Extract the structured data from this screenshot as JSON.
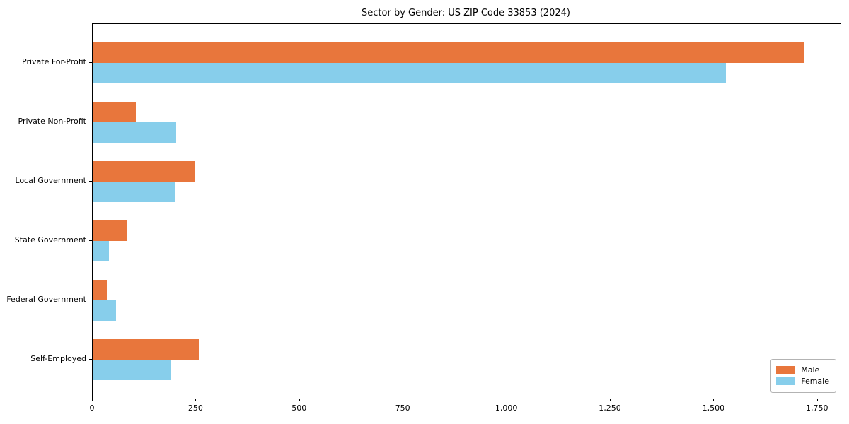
{
  "chart_data": {
    "type": "bar",
    "orientation": "horizontal",
    "title": "Sector by Gender: US ZIP Code 33853 (2024)",
    "categories": [
      "Private For-Profit",
      "Private Non-Profit",
      "Local Government",
      "State Government",
      "Federal Government",
      "Self-Employed"
    ],
    "series": [
      {
        "name": "Male",
        "color": "#e8763c",
        "values": [
          1718,
          104,
          248,
          83,
          35,
          256
        ]
      },
      {
        "name": "Female",
        "color": "#87ceeb",
        "values": [
          1528,
          202,
          198,
          39,
          56,
          187
        ]
      }
    ],
    "xlabel": "",
    "ylabel": "",
    "xlim": [
      0,
      1805
    ],
    "x_ticks": [
      0,
      250,
      500,
      750,
      1000,
      1250,
      1500,
      1750
    ],
    "x_tick_labels": [
      "0",
      "250",
      "500",
      "750",
      "1,000",
      "1,250",
      "1,500",
      "1,750"
    ],
    "grid": false,
    "legend_position": "lower right",
    "background_color": "#ffffff",
    "spines": "full-box"
  }
}
